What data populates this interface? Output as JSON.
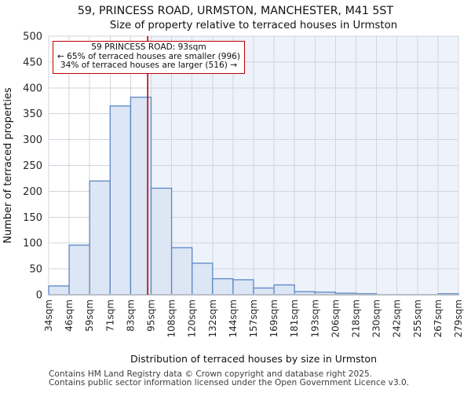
{
  "title": "59, PRINCESS ROAD, URMSTON, MANCHESTER, M41 5ST",
  "subtitle": "Size of property relative to terraced houses in Urmston",
  "annotation": {
    "line1": "59 PRINCESS ROAD: 93sqm",
    "line2": "← 65% of terraced houses are smaller (996)",
    "line3": "34% of terraced houses are larger (516) →"
  },
  "chart_data": {
    "type": "bar",
    "title": "59, PRINCESS ROAD, URMSTON, MANCHESTER, M41 5ST",
    "subtitle": "Size of property relative to terraced houses in Urmston",
    "xlabel": "Distribution of terraced houses by size in Urmston",
    "ylabel": "Number of terraced properties",
    "categories": [
      "34sqm",
      "46sqm",
      "59sqm",
      "71sqm",
      "83sqm",
      "95sqm",
      "108sqm",
      "120sqm",
      "132sqm",
      "144sqm",
      "157sqm",
      "169sqm",
      "181sqm",
      "193sqm",
      "206sqm",
      "218sqm",
      "230sqm",
      "242sqm",
      "255sqm",
      "267sqm",
      "279sqm"
    ],
    "bin_edges_sqm": [
      34,
      46,
      59,
      71,
      83,
      95,
      108,
      120,
      132,
      144,
      157,
      169,
      181,
      193,
      206,
      218,
      230,
      242,
      255,
      267,
      279
    ],
    "values": [
      17,
      96,
      220,
      365,
      382,
      206,
      91,
      61,
      31,
      29,
      13,
      19,
      6,
      5,
      3,
      2,
      0,
      0,
      0,
      2
    ],
    "marker_sqm": 93,
    "marker_label": "59 PRINCESS ROAD: 93sqm",
    "smaller_pct": 65,
    "smaller_count": 996,
    "larger_pct": 34,
    "larger_count": 516,
    "ylim": [
      0,
      500
    ],
    "ytick_step": 50,
    "grid": true,
    "legend": "none"
  },
  "footer": {
    "line1": "Contains HM Land Registry data © Crown copyright and database right 2025.",
    "line2": "Contains public sector information licensed under the Open Government Licence v3.0."
  },
  "colors": {
    "bar_fill": "#dce6f4",
    "bar_stroke": "#5b88c6",
    "marker": "#c00000",
    "annotation_border": "#c00000",
    "grid": "#d0d5de",
    "axis_line": "#b9bec7",
    "shade_right_of_marker": "#eef2fb",
    "text": "#111111",
    "tick_text": "#262626",
    "footer_text": "#3d3d3d"
  }
}
